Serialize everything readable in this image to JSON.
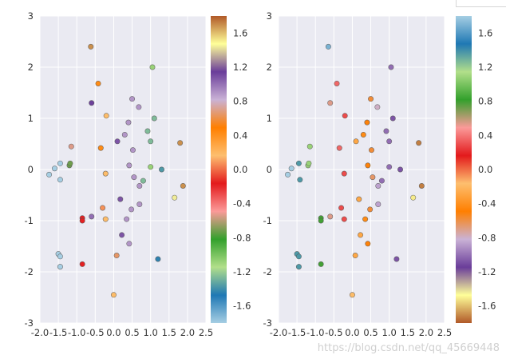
{
  "chart_data": [
    {
      "type": "scatter",
      "title": "",
      "xlabel": "",
      "ylabel": "",
      "xlim": [
        -2.0,
        2.5
      ],
      "ylim": [
        -3,
        3
      ],
      "x_ticks": [
        "-2.0",
        "-1.5",
        "-1.0",
        "-0.5",
        "0.0",
        "0.5",
        "1.0",
        "1.5",
        "2.0",
        "2.5"
      ],
      "y_ticks": [
        "3",
        "2",
        "1",
        "0",
        "-1",
        "-2",
        "-3"
      ],
      "grid": true,
      "colormap": "Paired",
      "colorbar": {
        "range": [
          -1.8,
          1.8
        ],
        "ticks": [
          "1.6",
          "1.2",
          "0.8",
          "0.4",
          "0.0",
          "-0.4",
          "-0.8",
          "-1.2",
          "-1.6"
        ],
        "colors_top_to_bottom": [
          "#b15928",
          "#ffff99",
          "#6a3d9a",
          "#cab2d6",
          "#ff7f00",
          "#fdbf6f",
          "#e31a1c",
          "#fb9a99",
          "#33a02c",
          "#b2df8a",
          "#1f78b4",
          "#a6cee3"
        ]
      },
      "points": [
        {
          "x": -1.75,
          "y": -0.1,
          "c": 0
        },
        {
          "x": -1.6,
          "y": 0.02,
          "c": 0
        },
        {
          "x": -1.45,
          "y": 0.12,
          "c": 0
        },
        {
          "x": -1.45,
          "y": -0.2,
          "c": 0
        },
        {
          "x": -1.5,
          "y": -1.65,
          "c": 0
        },
        {
          "x": -1.45,
          "y": -1.7,
          "c": 0
        },
        {
          "x": -1.45,
          "y": -1.9,
          "c": 0
        },
        {
          "x": -1.2,
          "y": 0.08,
          "c": 0.3
        },
        {
          "x": -1.18,
          "y": 0.12,
          "c": 0.3
        },
        {
          "x": -1.15,
          "y": 0.45,
          "c": 0.35
        },
        {
          "x": -0.85,
          "y": -0.95,
          "c": 0.45
        },
        {
          "x": -0.85,
          "y": -1.0,
          "c": 0.45
        },
        {
          "x": -0.85,
          "y": -1.85,
          "c": 0.45
        },
        {
          "x": -0.62,
          "y": 2.4,
          "c": 0.97
        },
        {
          "x": -0.6,
          "y": 1.3,
          "c": 0.82
        },
        {
          "x": -0.6,
          "y": -0.92,
          "c": 0.78
        },
        {
          "x": -0.42,
          "y": 1.68,
          "c": 0.62
        },
        {
          "x": -0.35,
          "y": 0.42,
          "c": 0.62
        },
        {
          "x": -0.3,
          "y": -0.75,
          "c": 0.52
        },
        {
          "x": -0.2,
          "y": 1.05,
          "c": 0.55
        },
        {
          "x": -0.22,
          "y": -0.08,
          "c": 0.55
        },
        {
          "x": -0.22,
          "y": -0.97,
          "c": 0.55
        },
        {
          "x": 0.0,
          "y": -2.45,
          "c": 0.55
        },
        {
          "x": 0.08,
          "y": -1.68,
          "c": 0.68
        },
        {
          "x": 0.1,
          "y": 0.55,
          "c": 0.8
        },
        {
          "x": 0.18,
          "y": -0.58,
          "c": 0.8
        },
        {
          "x": 0.22,
          "y": -1.28,
          "c": 0.8
        },
        {
          "x": 0.3,
          "y": 0.68,
          "c": 0.75
        },
        {
          "x": 0.35,
          "y": -0.97,
          "c": 0.75
        },
        {
          "x": 0.4,
          "y": 0.92,
          "c": 0.75
        },
        {
          "x": 0.42,
          "y": 0.08,
          "c": 0.75
        },
        {
          "x": 0.42,
          "y": -1.45,
          "c": 0.75
        },
        {
          "x": 0.48,
          "y": -0.78,
          "c": 0.75
        },
        {
          "x": 0.5,
          "y": 1.38,
          "c": 0.75
        },
        {
          "x": 0.52,
          "y": 0.38,
          "c": 0.75
        },
        {
          "x": 0.55,
          "y": -0.15,
          "c": 0.75
        },
        {
          "x": 0.68,
          "y": 1.22,
          "c": 0.75
        },
        {
          "x": 0.7,
          "y": -0.32,
          "c": 0.75
        },
        {
          "x": 0.7,
          "y": -0.68,
          "c": 0.75
        },
        {
          "x": 0.8,
          "y": -0.22,
          "c": 0.15
        },
        {
          "x": 0.92,
          "y": 0.75,
          "c": 0.15
        },
        {
          "x": 1.0,
          "y": 0.55,
          "c": 0.15
        },
        {
          "x": 1.0,
          "y": 0.05,
          "c": 0.2
        },
        {
          "x": 1.05,
          "y": 2.0,
          "c": 0.2
        },
        {
          "x": 1.1,
          "y": 1.0,
          "c": 0.15
        },
        {
          "x": 1.2,
          "y": -1.75,
          "c": 0.1
        },
        {
          "x": 1.3,
          "y": 0.0,
          "c": 0.12
        },
        {
          "x": 1.65,
          "y": -0.55,
          "c": 0.9
        },
        {
          "x": 1.8,
          "y": 0.52,
          "c": 0.97
        },
        {
          "x": 1.88,
          "y": -0.32,
          "c": 0.97
        }
      ]
    },
    {
      "type": "scatter",
      "title": "",
      "xlabel": "",
      "ylabel": "",
      "xlim": [
        -2.0,
        2.5
      ],
      "ylim": [
        -3,
        3
      ],
      "x_ticks": [
        "-2.0",
        "-1.5",
        "-1.0",
        "-0.5",
        "0.0",
        "0.5",
        "1.0",
        "1.5",
        "2.0",
        "2.5"
      ],
      "y_ticks": [
        "3",
        "2",
        "1",
        "0",
        "-1",
        "-2",
        "-3"
      ],
      "grid": true,
      "colormap": "Paired (reversed)",
      "colorbar": {
        "range": [
          -1.8,
          1.8
        ],
        "ticks": [
          "1.6",
          "1.2",
          "0.8",
          "0.4",
          "0.0",
          "-0.4",
          "-0.8",
          "-1.2",
          "-1.6"
        ],
        "colors_top_to_bottom": [
          "#a6cee3",
          "#1f78b4",
          "#b2df8a",
          "#33a02c",
          "#fb9a99",
          "#e31a1c",
          "#fdbf6f",
          "#ff7f00",
          "#cab2d6",
          "#6a3d9a",
          "#ffff99",
          "#b15928"
        ]
      },
      "points": [
        {
          "x": -1.75,
          "y": -0.1,
          "c": 1.0
        },
        {
          "x": -1.65,
          "y": 0.02,
          "c": 1.0
        },
        {
          "x": -1.45,
          "y": 0.12,
          "c": 0.88
        },
        {
          "x": -1.42,
          "y": -0.2,
          "c": 0.88
        },
        {
          "x": -1.5,
          "y": -1.65,
          "c": 0.88
        },
        {
          "x": -1.45,
          "y": -1.7,
          "c": 0.88
        },
        {
          "x": -1.45,
          "y": -1.9,
          "c": 0.88
        },
        {
          "x": -1.2,
          "y": 0.08,
          "c": 0.8
        },
        {
          "x": -1.18,
          "y": 0.12,
          "c": 0.8
        },
        {
          "x": -1.15,
          "y": 0.45,
          "c": 0.8
        },
        {
          "x": -0.85,
          "y": -0.95,
          "c": 0.72
        },
        {
          "x": -0.85,
          "y": -1.0,
          "c": 0.72
        },
        {
          "x": -0.85,
          "y": -1.85,
          "c": 0.72
        },
        {
          "x": -0.65,
          "y": 2.4,
          "c": 0.97
        },
        {
          "x": -0.6,
          "y": 1.3,
          "c": 0.65
        },
        {
          "x": -0.6,
          "y": -0.92,
          "c": 0.65
        },
        {
          "x": -0.42,
          "y": 1.68,
          "c": 0.6
        },
        {
          "x": -0.35,
          "y": 0.42,
          "c": 0.6
        },
        {
          "x": -0.3,
          "y": -0.75,
          "c": 0.58
        },
        {
          "x": -0.2,
          "y": 1.05,
          "c": 0.58
        },
        {
          "x": -0.22,
          "y": -0.08,
          "c": 0.58
        },
        {
          "x": -0.22,
          "y": -0.97,
          "c": 0.58
        },
        {
          "x": 0.0,
          "y": -2.45,
          "c": 0.45
        },
        {
          "x": 0.08,
          "y": -1.68,
          "c": 0.42
        },
        {
          "x": 0.1,
          "y": 0.55,
          "c": 0.42
        },
        {
          "x": 0.18,
          "y": -0.58,
          "c": 0.42
        },
        {
          "x": 0.22,
          "y": -1.28,
          "c": 0.42
        },
        {
          "x": 0.3,
          "y": 0.68,
          "c": 0.38
        },
        {
          "x": 0.35,
          "y": -0.97,
          "c": 0.38
        },
        {
          "x": 0.4,
          "y": 0.92,
          "c": 0.36
        },
        {
          "x": 0.42,
          "y": 0.08,
          "c": 0.36
        },
        {
          "x": 0.42,
          "y": -1.45,
          "c": 0.36
        },
        {
          "x": 0.48,
          "y": -0.78,
          "c": 0.34
        },
        {
          "x": 0.5,
          "y": 1.38,
          "c": 0.34
        },
        {
          "x": 0.52,
          "y": 0.38,
          "c": 0.34
        },
        {
          "x": 0.55,
          "y": -0.15,
          "c": 0.32
        },
        {
          "x": 0.68,
          "y": 1.22,
          "c": 0.28
        },
        {
          "x": 0.7,
          "y": -0.32,
          "c": 0.26
        },
        {
          "x": 0.7,
          "y": -0.68,
          "c": 0.26
        },
        {
          "x": 0.8,
          "y": -0.22,
          "c": 0.22
        },
        {
          "x": 0.92,
          "y": 0.75,
          "c": 0.22
        },
        {
          "x": 1.0,
          "y": 0.55,
          "c": 0.22
        },
        {
          "x": 1.0,
          "y": 0.05,
          "c": 0.22
        },
        {
          "x": 1.05,
          "y": 2.0,
          "c": 0.22
        },
        {
          "x": 1.1,
          "y": 1.0,
          "c": 0.2
        },
        {
          "x": 1.2,
          "y": -1.75,
          "c": 0.2
        },
        {
          "x": 1.3,
          "y": 0.0,
          "c": 0.2
        },
        {
          "x": 1.65,
          "y": -0.55,
          "c": 0.08
        },
        {
          "x": 1.8,
          "y": 0.52,
          "c": 0.02
        },
        {
          "x": 1.88,
          "y": -0.32,
          "c": 0.02
        }
      ]
    }
  ],
  "watermark": "https://blog.csdn.net/qq_45669448"
}
